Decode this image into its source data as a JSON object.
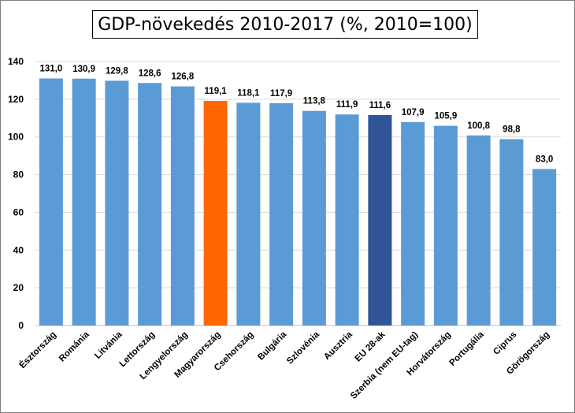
{
  "chart_data": {
    "type": "bar",
    "title": "GDP-növekedés 2010-2017 (%, 2010=100)",
    "categories": [
      "Észtország",
      "Románia",
      "Litvánia",
      "Lettország",
      "Lengyelország",
      "Magyarország",
      "Csehország",
      "Bulgária",
      "Szlovénia",
      "Ausztria",
      "EU 28-ak",
      "Szerbia (nem EU-tag)",
      "Horvátország",
      "Portugália",
      "Ciprus",
      "Görögország"
    ],
    "values": [
      131.0,
      130.9,
      129.8,
      128.6,
      126.8,
      119.1,
      118.1,
      117.9,
      113.8,
      111.9,
      111.6,
      107.9,
      105.9,
      100.8,
      98.8,
      83.0
    ],
    "value_labels": [
      "131,0",
      "130,9",
      "129,8",
      "128,6",
      "126,8",
      "119,1",
      "118,1",
      "117,9",
      "113,8",
      "111,9",
      "111,6",
      "107,9",
      "105,9",
      "100,8",
      "98,8",
      "83,0"
    ],
    "ylim": [
      0,
      140
    ],
    "yticks": [
      "0",
      "20",
      "40",
      "60",
      "80",
      "100",
      "120",
      "140"
    ],
    "grid": true,
    "legend": "none",
    "colors": {
      "default": "#5b9bd5",
      "highlight_magyarorszag": "#ff6600",
      "highlight_eu": "#2f5597",
      "grid": "#d9d9d9"
    },
    "bar_colors": [
      "default",
      "default",
      "default",
      "default",
      "default",
      "highlight_magyarorszag",
      "default",
      "default",
      "default",
      "default",
      "highlight_eu",
      "default",
      "default",
      "default",
      "default",
      "default"
    ]
  }
}
